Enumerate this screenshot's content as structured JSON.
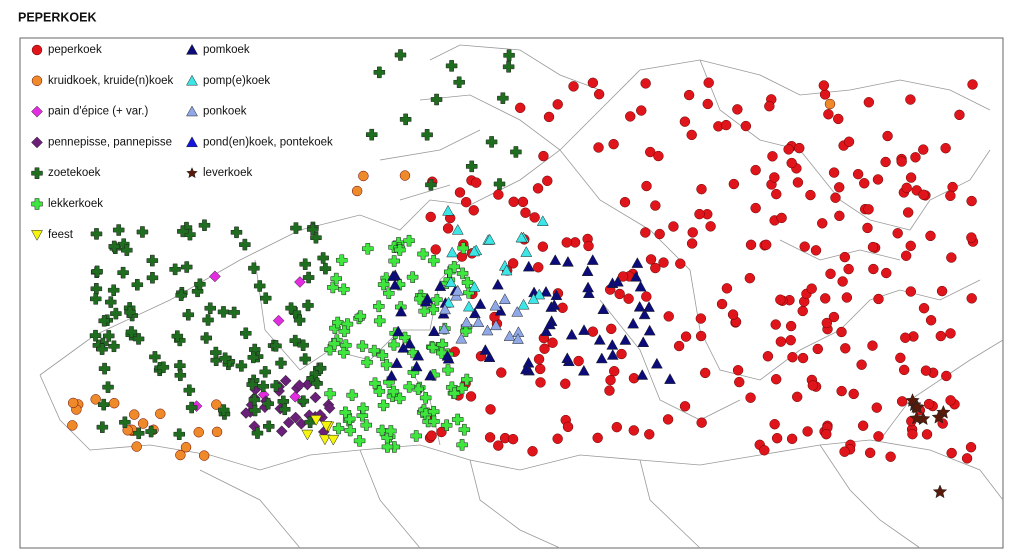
{
  "title": "PEPERKOEK",
  "legend": [
    {
      "label": "peperkoek",
      "color": "#e0151b",
      "shape": "circle"
    },
    {
      "label": "kruidkoek, kruide(n)koek",
      "color": "#ef8a2a",
      "shape": "circle"
    },
    {
      "label": "pain d'épice (+ var.)",
      "color": "#e22ce0",
      "shape": "diamond"
    },
    {
      "label": "pennepisse, pannepisse",
      "color": "#6a1f78",
      "shape": "diamond"
    },
    {
      "label": "zoetekoek",
      "color": "#1f6e1f",
      "shape": "cross"
    },
    {
      "label": "lekkerkoek",
      "color": "#3ee63e",
      "shape": "cross"
    },
    {
      "label": "feest",
      "color": "#f4f40c",
      "shape": "triangle-down"
    },
    {
      "label": "pomkoek",
      "color": "#0b0b7a",
      "shape": "triangle"
    },
    {
      "label": "pomp(e)koek",
      "color": "#3de6e6",
      "shape": "triangle"
    },
    {
      "label": "ponkoek",
      "color": "#8fa8e8",
      "shape": "triangle"
    },
    {
      "label": "pond(en)koek, pontekoek",
      "color": "#1515e0",
      "shape": "triangle"
    },
    {
      "label": "leverkoek",
      "color": "#5a1a0a",
      "shape": "star"
    }
  ]
}
